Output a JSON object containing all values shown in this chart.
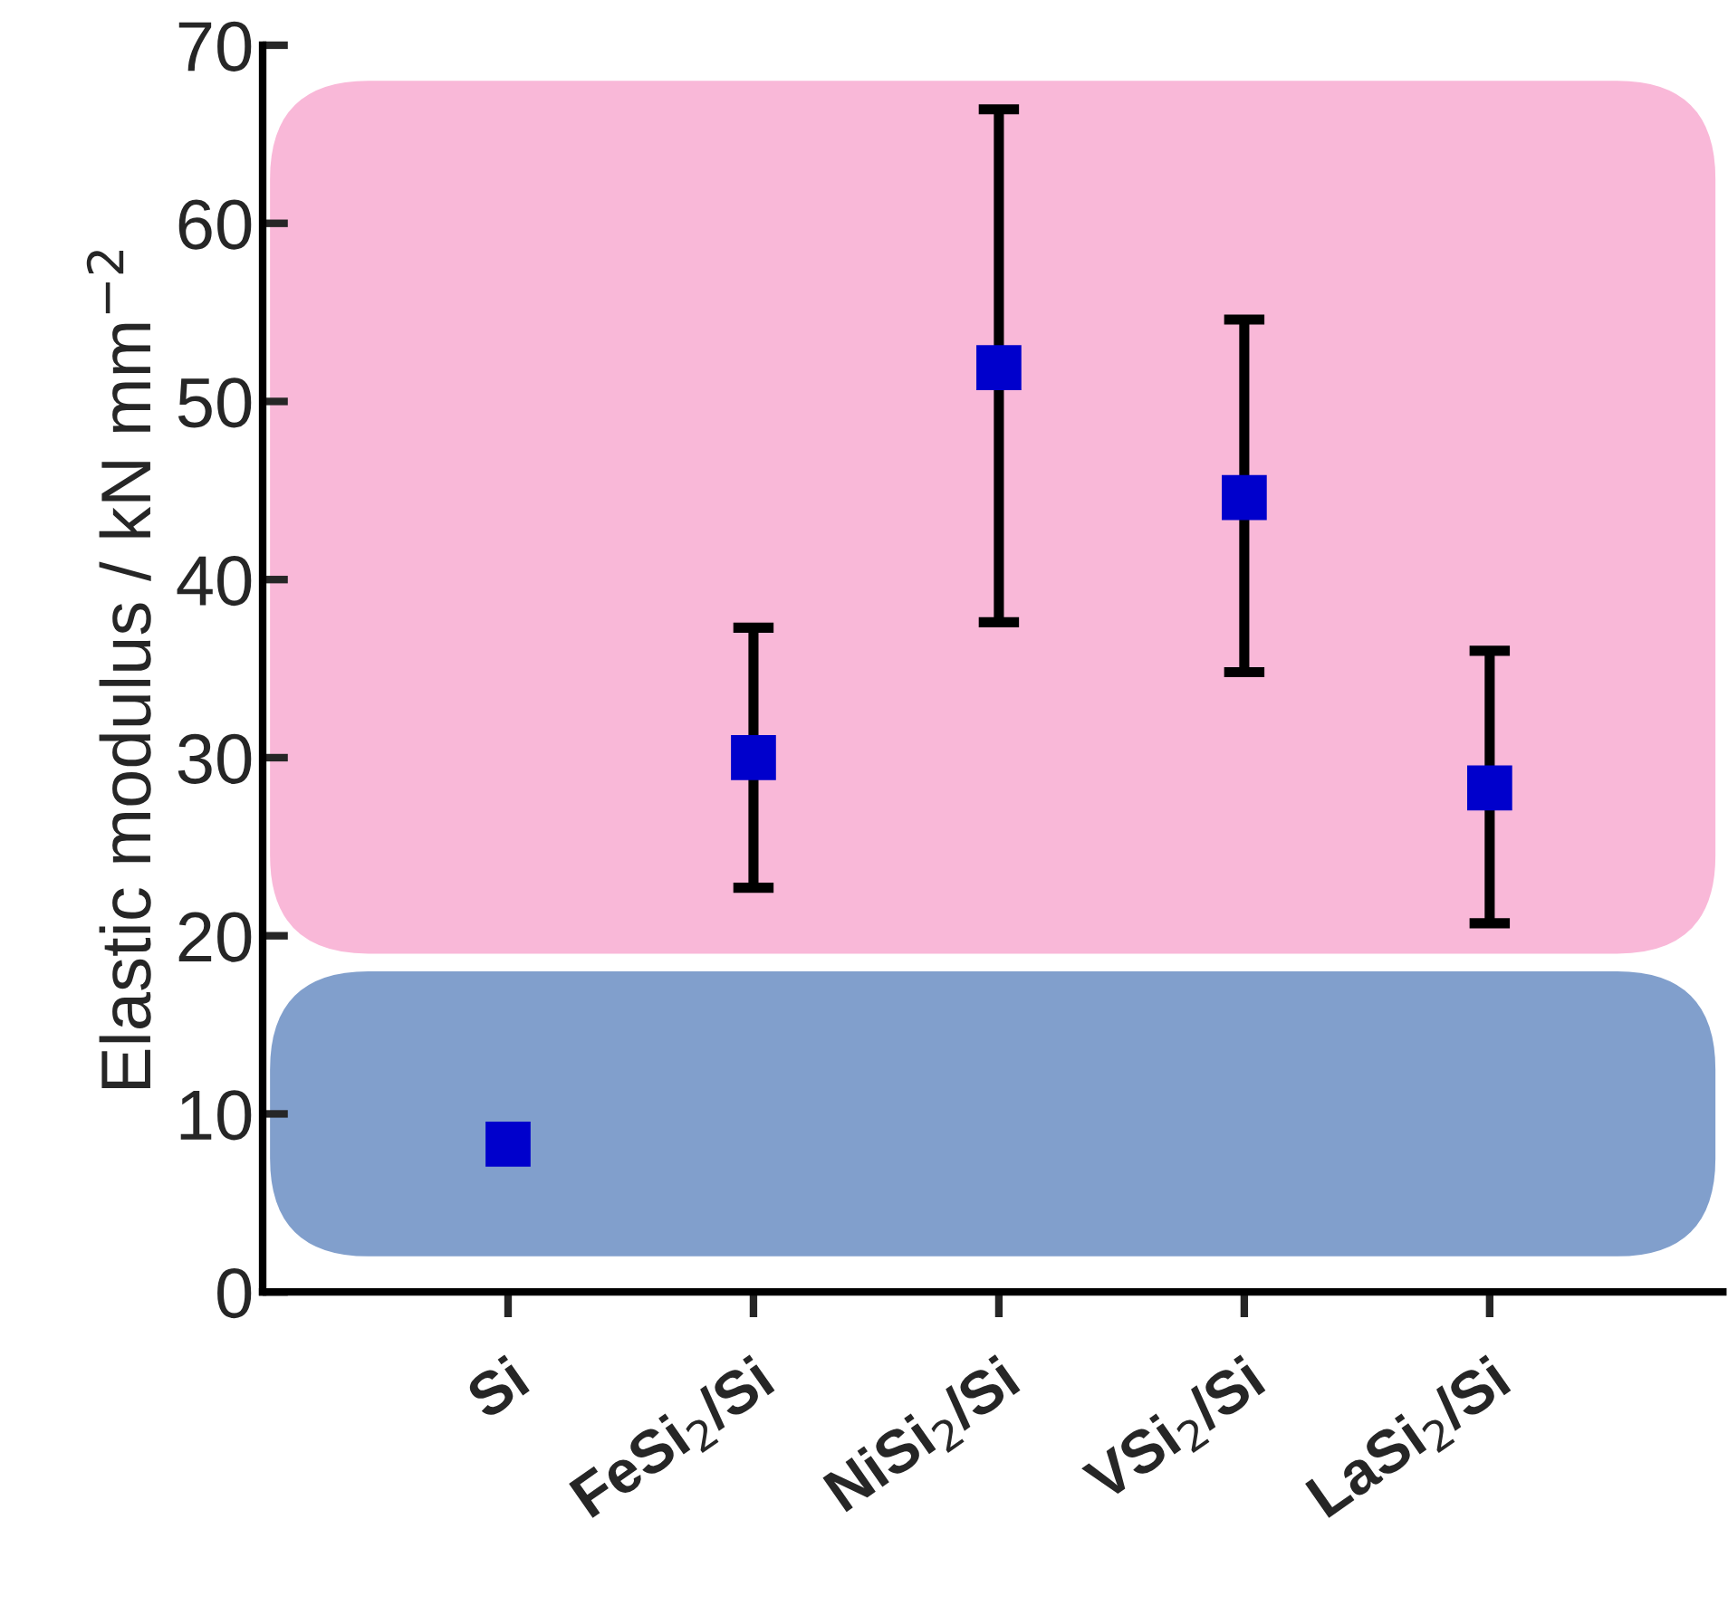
{
  "chart_data": {
    "type": "scatter",
    "ylabel": "Elastic modulus / kN mm$^{−2}$",
    "categories": [
      "Si",
      "FeSi$_{2}$/Si",
      "NiSi$_{2}$/Si",
      "VSi$_{2}$/Si",
      "LaSi$_{2}$/Si"
    ],
    "series": [
      {
        "color": "#0000cc",
        "values": [
          8.3,
          30.0,
          51.9,
          44.6,
          28.3
        ],
        "errors": [
          null,
          [
            22.7,
            37.3
          ],
          [
            37.6,
            66.4
          ],
          [
            34.8,
            54.6
          ],
          [
            20.7,
            36.0
          ]
        ]
      }
    ],
    "ylim": [
      0,
      70
    ],
    "yticks": [
      0,
      10,
      20,
      30,
      40,
      50,
      60,
      70
    ],
    "bands": [
      {
        "axis": "y",
        "from": 19,
        "to": 68,
        "color": "#f9b8d8"
      },
      {
        "axis": "y",
        "from": 2,
        "to": 18,
        "color": "#819fcc"
      }
    ],
    "marker": "square",
    "grid": false,
    "legend": false
  }
}
